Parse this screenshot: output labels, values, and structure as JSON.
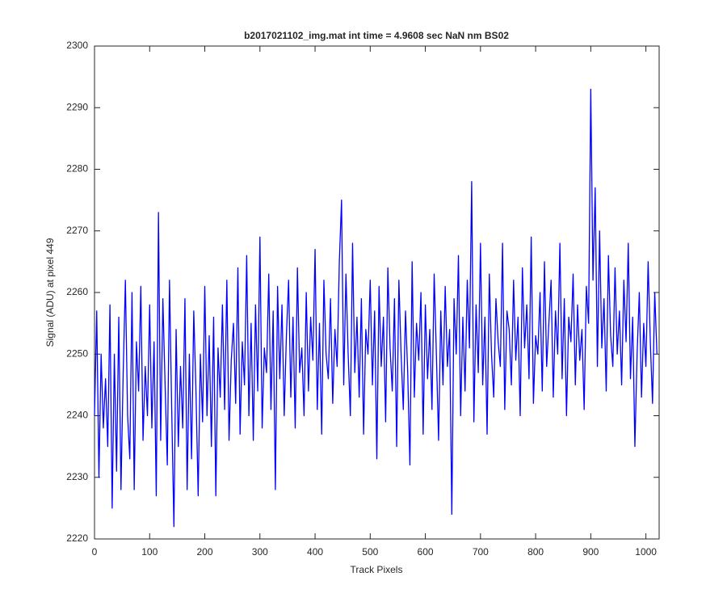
{
  "chart_data": {
    "type": "line",
    "title": "b2017021102_img.mat int time = 4.9608 sec  NaN nm BS02",
    "x_label": "Track Pixels",
    "y_label": "Signal (ADU) at pixel 449",
    "xlim": [
      0,
      1024
    ],
    "xticks": [
      0,
      100,
      200,
      300,
      400,
      500,
      600,
      700,
      800,
      900,
      1000
    ],
    "ylim": [
      2220,
      2300
    ],
    "yticks": [
      2220,
      2230,
      2240,
      2250,
      2260,
      2270,
      2280,
      2290,
      2300
    ],
    "grid": false,
    "x": [
      0,
      4,
      8,
      12,
      16,
      20,
      24,
      28,
      32,
      36,
      40,
      44,
      48,
      52,
      56,
      60,
      64,
      68,
      72,
      76,
      80,
      84,
      88,
      92,
      96,
      100,
      104,
      108,
      112,
      116,
      120,
      124,
      128,
      132,
      136,
      140,
      144,
      148,
      152,
      156,
      160,
      164,
      168,
      172,
      176,
      180,
      184,
      188,
      192,
      196,
      200,
      204,
      208,
      212,
      216,
      220,
      224,
      228,
      232,
      236,
      240,
      244,
      248,
      252,
      256,
      260,
      264,
      268,
      272,
      276,
      280,
      284,
      288,
      292,
      296,
      300,
      304,
      308,
      312,
      316,
      320,
      324,
      328,
      332,
      336,
      340,
      344,
      348,
      352,
      356,
      360,
      364,
      368,
      372,
      376,
      380,
      384,
      388,
      392,
      396,
      400,
      404,
      408,
      412,
      416,
      420,
      424,
      428,
      432,
      436,
      440,
      444,
      448,
      452,
      456,
      460,
      464,
      468,
      472,
      476,
      480,
      484,
      488,
      492,
      496,
      500,
      504,
      508,
      512,
      516,
      520,
      524,
      528,
      532,
      536,
      540,
      544,
      548,
      552,
      556,
      560,
      564,
      568,
      572,
      576,
      580,
      584,
      588,
      592,
      596,
      600,
      604,
      608,
      612,
      616,
      620,
      624,
      628,
      632,
      636,
      640,
      644,
      648,
      652,
      656,
      660,
      664,
      668,
      672,
      676,
      680,
      684,
      688,
      692,
      696,
      700,
      704,
      708,
      712,
      716,
      720,
      724,
      728,
      732,
      736,
      740,
      744,
      748,
      752,
      756,
      760,
      764,
      768,
      772,
      776,
      780,
      784,
      788,
      792,
      796,
      800,
      804,
      808,
      812,
      816,
      820,
      824,
      828,
      832,
      836,
      840,
      844,
      848,
      852,
      856,
      860,
      864,
      868,
      872,
      876,
      880,
      884,
      888,
      892,
      896,
      900,
      904,
      908,
      912,
      916,
      920,
      924,
      928,
      932,
      936,
      940,
      944,
      948,
      952,
      956,
      960,
      964,
      968,
      972,
      976,
      980,
      984,
      988,
      992,
      996,
      1000,
      1004,
      1008,
      1012,
      1016,
      1020
    ],
    "series": [
      {
        "name": "Signal",
        "color": "#0000ff",
        "values": [
          2240,
          2257,
          2230,
          2250,
          2238,
          2246,
          2235,
          2258,
          2225,
          2250,
          2231,
          2256,
          2228,
          2247,
          2262,
          2240,
          2233,
          2260,
          2228,
          2252,
          2244,
          2261,
          2236,
          2248,
          2240,
          2258,
          2238,
          2252,
          2227,
          2273,
          2236,
          2259,
          2245,
          2232,
          2262,
          2241,
          2222,
          2254,
          2235,
          2248,
          2238,
          2259,
          2228,
          2250,
          2233,
          2257,
          2244,
          2227,
          2250,
          2239,
          2261,
          2240,
          2253,
          2235,
          2256,
          2227,
          2251,
          2243,
          2258,
          2241,
          2262,
          2236,
          2249,
          2255,
          2242,
          2264,
          2237,
          2252,
          2245,
          2266,
          2240,
          2255,
          2236,
          2258,
          2244,
          2269,
          2238,
          2251,
          2247,
          2263,
          2241,
          2257,
          2228,
          2261,
          2246,
          2258,
          2240,
          2253,
          2262,
          2243,
          2256,
          2238,
          2264,
          2247,
          2251,
          2240,
          2260,
          2244,
          2256,
          2249,
          2267,
          2241,
          2255,
          2237,
          2262,
          2250,
          2246,
          2259,
          2242,
          2254,
          2248,
          2265,
          2275,
          2245,
          2263,
          2250,
          2240,
          2268,
          2247,
          2256,
          2243,
          2259,
          2237,
          2254,
          2250,
          2262,
          2245,
          2257,
          2233,
          2261,
          2248,
          2256,
          2239,
          2264,
          2251,
          2244,
          2259,
          2235,
          2262,
          2250,
          2241,
          2257,
          2247,
          2232,
          2265,
          2243,
          2255,
          2249,
          2260,
          2237,
          2258,
          2246,
          2254,
          2241,
          2263,
          2250,
          2236,
          2257,
          2245,
          2261,
          2248,
          2254,
          2224,
          2259,
          2250,
          2266,
          2240,
          2256,
          2244,
          2262,
          2251,
          2278,
          2239,
          2258,
          2247,
          2268,
          2245,
          2256,
          2237,
          2263,
          2250,
          2243,
          2259,
          2252,
          2248,
          2268,
          2241,
          2257,
          2254,
          2245,
          2262,
          2249,
          2256,
          2240,
          2264,
          2251,
          2258,
          2246,
          2269,
          2242,
          2253,
          2250,
          2260,
          2244,
          2265,
          2248,
          2255,
          2262,
          2243,
          2257,
          2250,
          2268,
          2246,
          2259,
          2240,
          2256,
          2252,
          2263,
          2245,
          2258,
          2249,
          2254,
          2241,
          2261,
          2255,
          2293,
          2262,
          2277,
          2248,
          2270,
          2251,
          2259,
          2244,
          2266,
          2253,
          2248,
          2264,
          2250,
          2257,
          2245,
          2262,
          2252,
          2268,
          2246,
          2256,
          2235,
          2250,
          2260,
          2243,
          2255,
          2248,
          2265,
          2252,
          2242,
          2260,
          2250
        ]
      }
    ]
  }
}
